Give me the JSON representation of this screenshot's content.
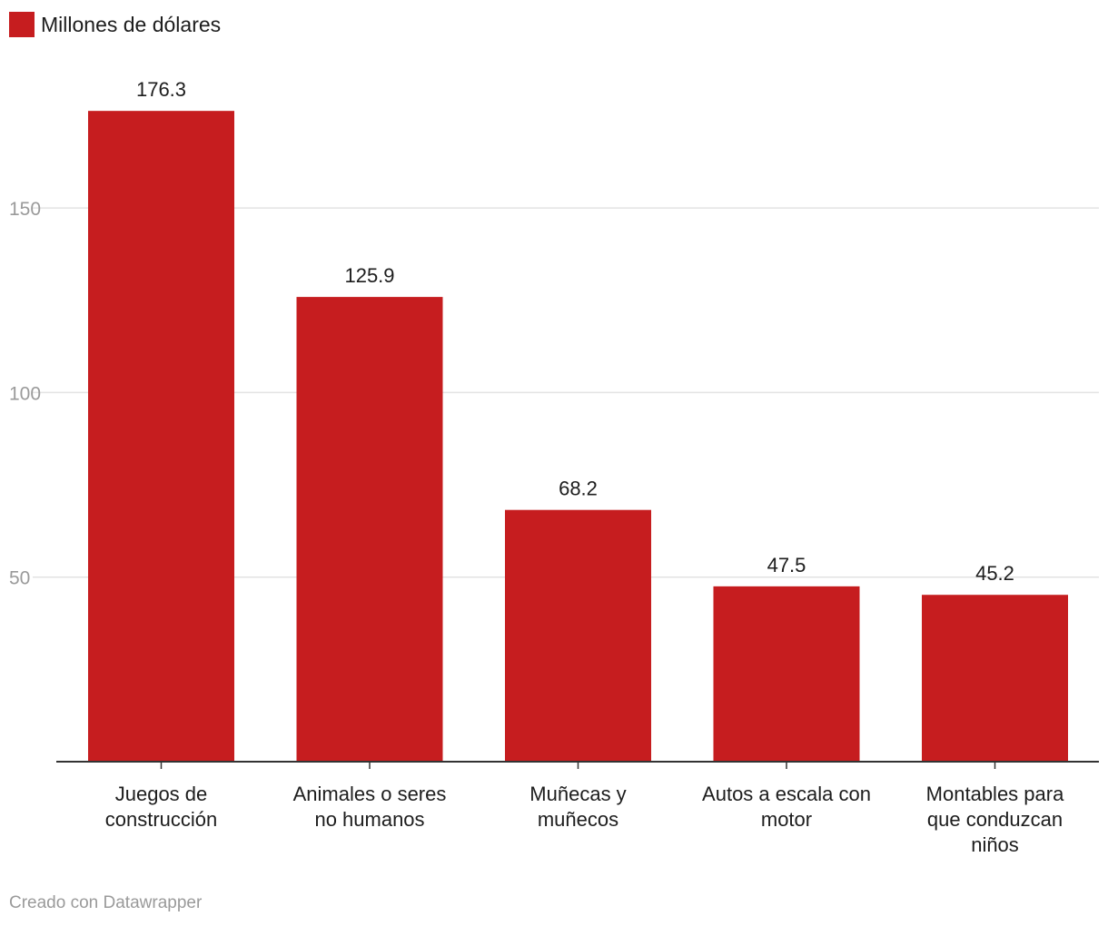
{
  "chart_data": {
    "type": "bar",
    "categories": [
      "Juegos de construcción",
      "Animales o seres no humanos",
      "Muñecas y muñecos",
      "Autos a escala con motor",
      "Montables para que conduzcan niños"
    ],
    "series": [
      {
        "name": "Millones de dólares",
        "values": [
          176.3,
          125.9,
          68.2,
          47.5,
          45.2
        ]
      }
    ],
    "data_labels": [
      "176.3",
      "125.9",
      "68.2",
      "47.5",
      "45.2"
    ],
    "yticks": [
      50,
      100,
      150
    ],
    "ylim": [
      0,
      190
    ],
    "grid": true,
    "legend_position": "top-left",
    "title": "",
    "xlabel": "",
    "ylabel": ""
  },
  "legend": {
    "label": "Millones de dólares"
  },
  "footer": {
    "credit": "Creado con Datawrapper"
  },
  "colors": {
    "bar": "#c61d1f",
    "grid": "#e3e3e3",
    "axis": "#333333",
    "tick_text": "#9a9a9a",
    "text": "#1d1d1d"
  }
}
